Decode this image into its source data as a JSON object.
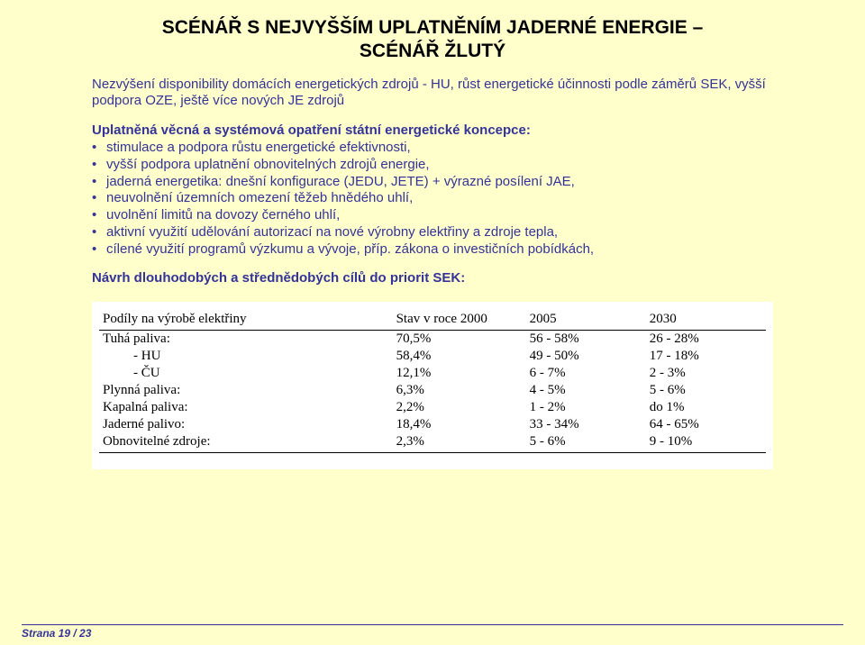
{
  "title_line1": "SCÉNÁŘ S NEJVYŠŠÍM UPLATNĚNÍM JADERNÉ ENERGIE –",
  "title_line2": "SCÉNÁŘ ŽLUTÝ",
  "intro": "Nezvýšení disponibility domácích energetických zdrojů - HU, růst energetické účinnosti podle záměrů SEK, vyšší podpora OZE, ještě více nových JE zdrojů",
  "subhead": "Uplatněná věcná a systémová opatření státní energetické koncepce:",
  "bullets": [
    "stimulace a podpora růstu energetické efektivnosti,",
    "vyšší podpora uplatnění obnovitelných zdrojů energie,",
    "jaderná energetika: dnešní konfigurace (JEDU, JETE) + výrazné posílení JAE,",
    "neuvolnění územních omezení těžeb hnědého uhlí,",
    "uvolnění limitů na dovozy černého uhlí,",
    "aktivní využití udělování autorizací na nové výrobny elektřiny a zdroje tepla,",
    "cílené využití programů výzkumu a vývoje, příp. zákona o investičních pobídkách,"
  ],
  "subhead2": "Návrh dlouhodobých a střednědobých cílů do priorit SEK:",
  "table": {
    "headers": [
      "Podíly na výrobě elektřiny",
      "Stav v roce 2000",
      "2005",
      "2030"
    ],
    "rows": [
      {
        "label": "Tuhá paliva:",
        "indent": false,
        "c2": "70,5%",
        "c3": "56 - 58%",
        "c4": "26 - 28%"
      },
      {
        "label": "-    HU",
        "indent": true,
        "c2": "58,4%",
        "c3": "49 - 50%",
        "c4": "17 - 18%"
      },
      {
        "label": "-    ČU",
        "indent": true,
        "c2": "12,1%",
        "c3": "6 - 7%",
        "c4": "2 - 3%"
      },
      {
        "label": "Plynná paliva:",
        "indent": false,
        "c2": "6,3%",
        "c3": "4 - 5%",
        "c4": "5 - 6%"
      },
      {
        "label": "Kapalná paliva:",
        "indent": false,
        "c2": "2,2%",
        "c3": "1 - 2%",
        "c4": "do 1%"
      },
      {
        "label": "Jaderné palivo:",
        "indent": false,
        "c2": "18,4%",
        "c3": "33 - 34%",
        "c4": "64 - 65%"
      },
      {
        "label": "Obnovitelné zdroje:",
        "indent": false,
        "c2": "2,3%",
        "c3": "5 - 6%",
        "c4": "9 - 10%"
      }
    ]
  },
  "footer": "Strana 19 / 23"
}
